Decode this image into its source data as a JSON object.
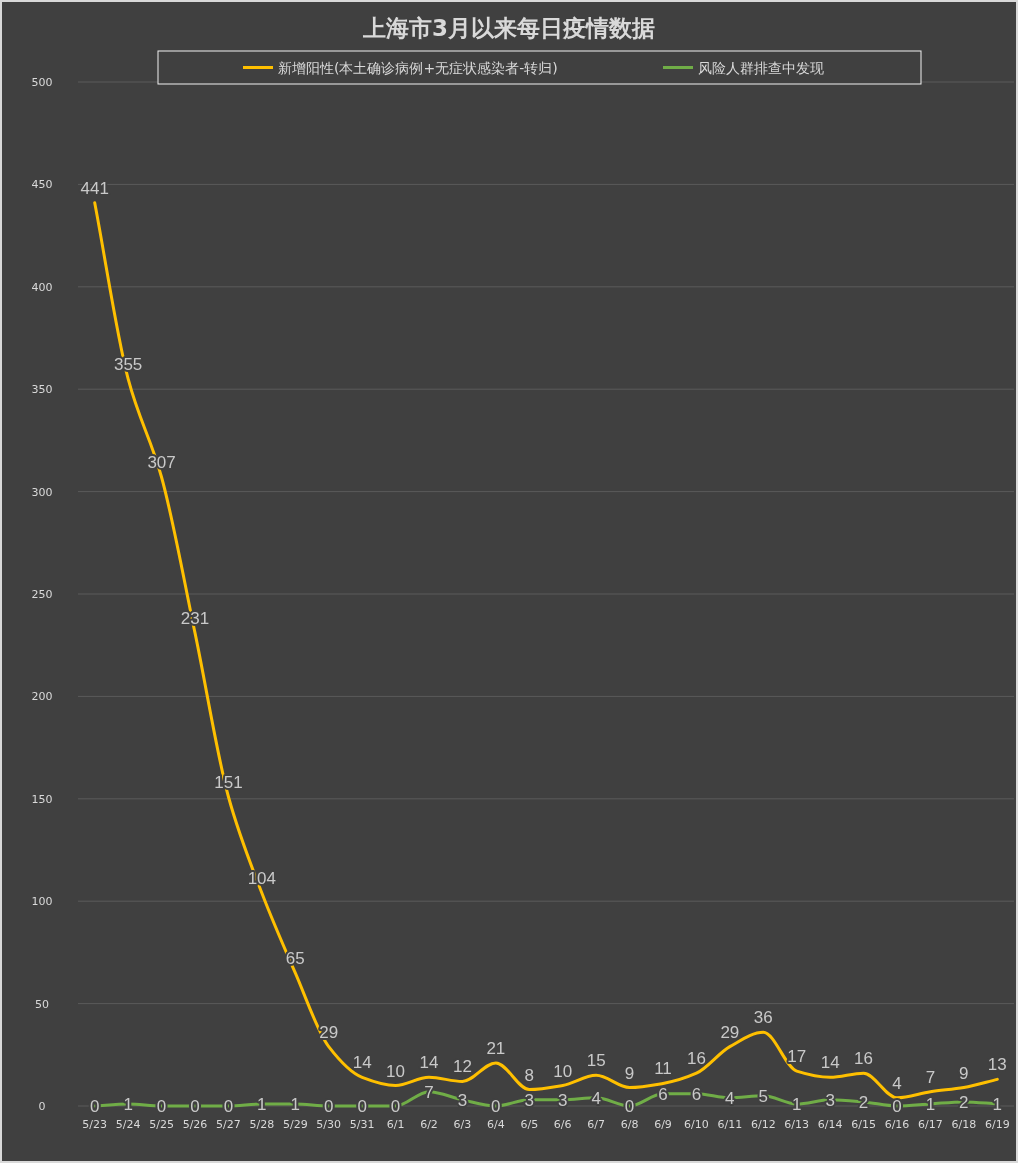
{
  "chart_data": {
    "type": "line",
    "title": "上海市3月以来每日疫情数据",
    "categories": [
      "5/23",
      "5/24",
      "5/25",
      "5/26",
      "5/27",
      "5/28",
      "5/29",
      "5/30",
      "5/31",
      "6/1",
      "6/2",
      "6/3",
      "6/4",
      "6/5",
      "6/6",
      "6/7",
      "6/8",
      "6/9",
      "6/10",
      "6/11",
      "6/12",
      "6/13",
      "6/14",
      "6/15",
      "6/16",
      "6/17",
      "6/18",
      "6/19"
    ],
    "series": [
      {
        "name": "新增阳性(本土确诊病例+无症状感染者-转归)",
        "color": "#ffc000",
        "values": [
          441,
          355,
          307,
          231,
          151,
          104,
          65,
          29,
          14,
          10,
          14,
          12,
          21,
          8,
          10,
          15,
          9,
          11,
          16,
          29,
          36,
          17,
          14,
          16,
          4,
          7,
          9,
          13
        ]
      },
      {
        "name": "风险人群排查中发现",
        "color": "#70ad47",
        "values": [
          0,
          1,
          0,
          0,
          0,
          1,
          1,
          0,
          0,
          0,
          7,
          3,
          0,
          3,
          3,
          4,
          0,
          6,
          6,
          4,
          5,
          1,
          3,
          2,
          0,
          1,
          2,
          1
        ]
      }
    ],
    "ylim": [
      0,
      500
    ],
    "yticks": [
      0,
      50,
      100,
      150,
      200,
      250,
      300,
      350,
      400,
      450,
      500
    ],
    "grid": "y",
    "legend": "top",
    "data_labels": true,
    "marker": "none",
    "line_style": "solid"
  }
}
